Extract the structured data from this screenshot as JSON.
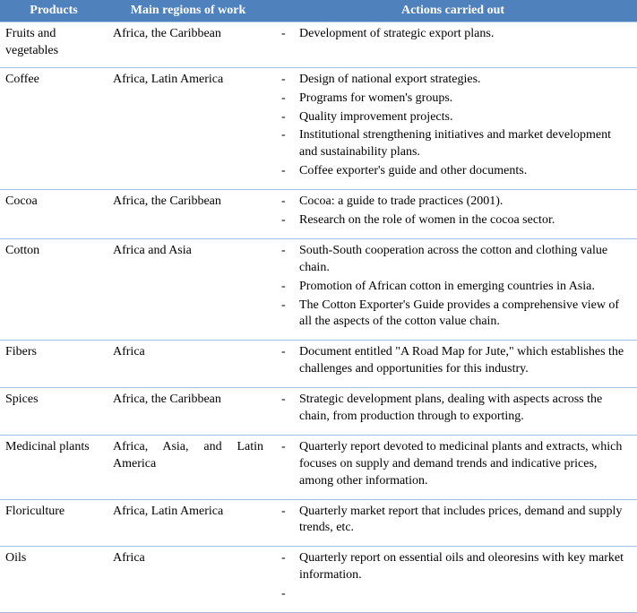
{
  "header": {
    "col_products": "Products",
    "col_regions": "Main regions of work",
    "col_actions": "Actions carried out"
  },
  "rows": [
    {
      "product": "Fruits and vegetables",
      "regions": "Africa, the Caribbean",
      "regions_justify": false,
      "actions": [
        "Development of strategic export plans."
      ]
    },
    {
      "product": "Coffee",
      "regions": "Africa, Latin America",
      "regions_justify": false,
      "actions": [
        "Design of national export strategies.",
        "Programs for women's groups.",
        "Quality improvement projects.",
        "Institutional strengthening initiatives and market development and sustainability plans.",
        "Coffee exporter's guide and other documents."
      ]
    },
    {
      "product": "Cocoa",
      "regions": "Africa, the Caribbean",
      "regions_justify": false,
      "actions": [
        "Cocoa: a guide to trade practices (2001).",
        "Research on the role of women in the cocoa sector."
      ]
    },
    {
      "product": "Cotton",
      "regions": "Africa and Asia",
      "regions_justify": false,
      "actions": [
        "South-South cooperation across the cotton and clothing value chain.",
        "Promotion of African cotton in emerging countries in Asia.",
        "The Cotton Exporter's Guide provides a comprehensive view of all the aspects of the cotton value chain."
      ]
    },
    {
      "product": "Fibers",
      "regions": "Africa",
      "regions_justify": false,
      "actions": [
        "Document entitled \"A Road Map for Jute,\" which establishes the challenges and opportunities for this industry."
      ]
    },
    {
      "product": "Spices",
      "regions": "Africa, the Caribbean",
      "regions_justify": false,
      "actions": [
        "Strategic development plans, dealing with aspects across the chain, from production through to exporting."
      ]
    },
    {
      "product": "Medicinal plants",
      "regions": "Africa, Asia, and Latin America",
      "regions_justify": true,
      "actions": [
        "Quarterly report devoted to medicinal plants and extracts, which focuses on supply and demand trends and indicative prices, among other information."
      ]
    },
    {
      "product": "Floriculture",
      "regions": "Africa, Latin America",
      "regions_justify": false,
      "actions": [
        "Quarterly market report that includes prices, demand and supply trends, etc."
      ]
    },
    {
      "product": "Oils",
      "regions": "Africa",
      "regions_justify": false,
      "actions": [
        "Quarterly report on essential oils and oleoresins with key market information.",
        ""
      ]
    }
  ]
}
